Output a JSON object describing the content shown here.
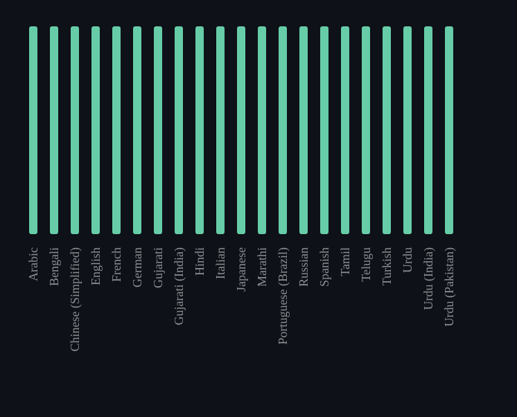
{
  "chart_data": {
    "type": "bar",
    "orientation": "vertical",
    "categories": [
      "Arabic",
      "Bengali",
      "Chinese (Simplified)",
      "English",
      "French",
      "German",
      "Gujarati",
      "Gujarati (India)",
      "Hindi",
      "Italian",
      "Japanese",
      "Marathi",
      "Portuguese (Brazil)",
      "Russian",
      "Spanish",
      "Tamil",
      "Telugu",
      "Turkish",
      "Urdu",
      "Urdu (India)",
      "Urdu (Pakistan)"
    ],
    "values": [
      1,
      1,
      1,
      1,
      1,
      1,
      1,
      1,
      1,
      1,
      1,
      1,
      1,
      1,
      1,
      1,
      1,
      1,
      1,
      1,
      1
    ],
    "ylim": [
      0,
      1
    ],
    "grid": false,
    "legend": "none",
    "colors": {
      "bar": "#66cda8",
      "background": "#0e1117",
      "label": "#8c8e93"
    }
  }
}
